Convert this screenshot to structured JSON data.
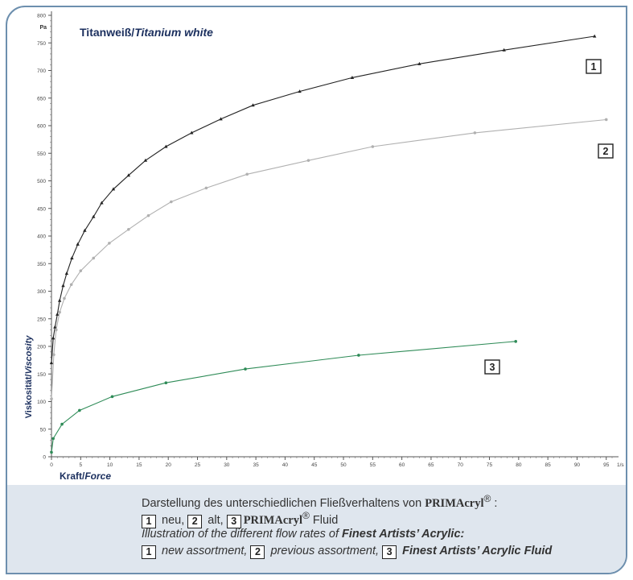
{
  "chart_data": {
    "type": "line",
    "title": "Titanweiß/ Titanium white",
    "title_de": "Titanweiß/",
    "title_en": "Titanium white",
    "ylabel_de": "Viskosität/",
    "ylabel_en": "Viscosity",
    "xlabel_de": "Kraft/",
    "xlabel_en": "Force",
    "y_unit": "Pa",
    "x_unit": "1/s",
    "ylim": [
      0,
      800
    ],
    "xlim": [
      0,
      96
    ],
    "y_ticks": [
      0,
      50,
      100,
      150,
      200,
      250,
      300,
      350,
      400,
      450,
      500,
      550,
      600,
      650,
      700,
      750,
      800
    ],
    "x_ticks": [
      0,
      5,
      10,
      15,
      20,
      25,
      30,
      35,
      40,
      45,
      50,
      55,
      60,
      65,
      70,
      75,
      80,
      85,
      90,
      95
    ],
    "grid": false,
    "legend": "box labels at line ends",
    "series": [
      {
        "name": "1",
        "color": "#222222",
        "marker": "triangle",
        "points": [
          [
            0,
            170
          ],
          [
            0.3,
            215
          ],
          [
            0.6,
            235
          ],
          [
            1.0,
            258
          ],
          [
            1.4,
            283
          ],
          [
            2.0,
            310
          ],
          [
            2.6,
            332
          ],
          [
            3.5,
            360
          ],
          [
            4.5,
            385
          ],
          [
            5.7,
            410
          ],
          [
            7.2,
            435
          ],
          [
            8.6,
            460
          ],
          [
            10.6,
            485
          ],
          [
            13.2,
            510
          ],
          [
            16.1,
            537
          ],
          [
            19.6,
            562
          ],
          [
            24,
            587
          ],
          [
            29,
            612
          ],
          [
            34.5,
            637
          ],
          [
            42.5,
            662
          ],
          [
            51.5,
            687
          ],
          [
            63,
            712
          ],
          [
            77.5,
            737
          ],
          [
            93,
            762
          ]
        ]
      },
      {
        "name": "2",
        "color": "#b0b0b0",
        "marker": "dot",
        "points": [
          [
            0,
            105
          ],
          [
            0.4,
            185
          ],
          [
            0.8,
            230
          ],
          [
            1.4,
            262
          ],
          [
            2.2,
            287
          ],
          [
            3.4,
            312
          ],
          [
            5.0,
            337
          ],
          [
            7.2,
            360
          ],
          [
            9.9,
            387
          ],
          [
            13.2,
            412
          ],
          [
            16.6,
            437
          ],
          [
            20.5,
            462
          ],
          [
            26.5,
            487
          ],
          [
            33.5,
            512
          ],
          [
            44,
            537
          ],
          [
            55,
            562
          ],
          [
            72.5,
            587
          ],
          [
            95,
            611
          ]
        ]
      },
      {
        "name": "3",
        "color": "#2e8b57",
        "marker": "dot",
        "points": [
          [
            0,
            8
          ],
          [
            0.3,
            33
          ],
          [
            1.8,
            59
          ],
          [
            4.8,
            84
          ],
          [
            10.4,
            109
          ],
          [
            19.6,
            134
          ],
          [
            33.2,
            159
          ],
          [
            52.6,
            184
          ],
          [
            79.5,
            209
          ]
        ]
      }
    ]
  },
  "caption": {
    "l1_text": "Darstellung des unterschiedlichen Fließverhaltens von",
    "brand": "PRIMAcryl",
    "reg": "®",
    "l1_suffix": " :",
    "l2_b1": "1",
    "l2_t1": " neu, ",
    "l2_b2": "2",
    "l2_t2": " alt, ",
    "l2_b3": "3",
    "l2_fluid": " Fluid",
    "l3_text": "Illustration of the different flow rates of ",
    "l3_bold": "Finest Artists’ Acrylic:",
    "l4_b1": "1",
    "l4_t1": " new assortment, ",
    "l4_b2": "2",
    "l4_t2": " previous assortment, ",
    "l4_b3": "3",
    "l4_bold": " Finest Artists’ Acrylic Fluid"
  }
}
